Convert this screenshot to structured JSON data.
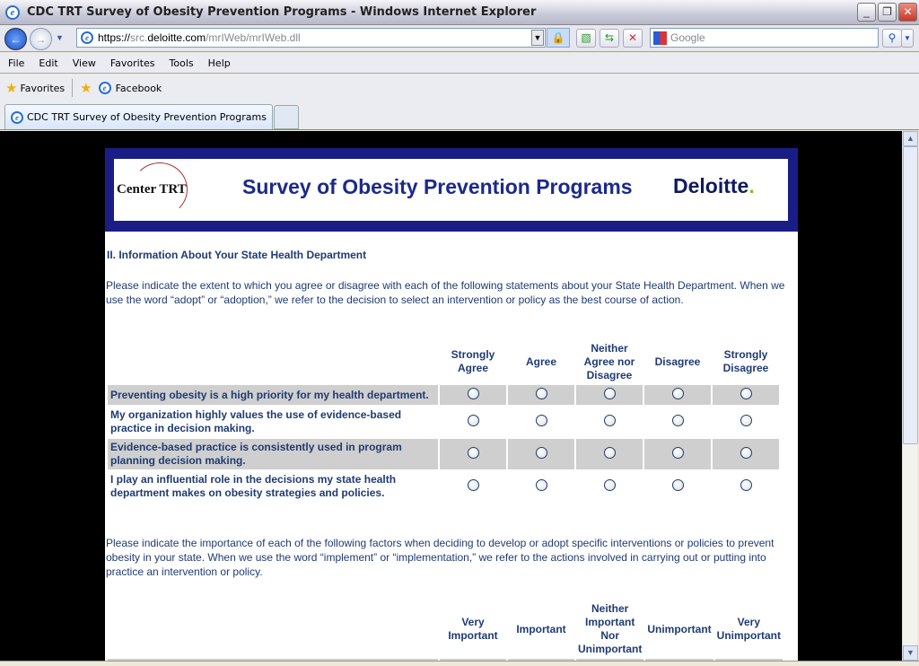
{
  "window": {
    "title": "CDC TRT Survey of Obesity Prevention Programs - Windows Internet Explorer"
  },
  "address": {
    "scheme": "https://",
    "host_pre": "src.",
    "host": "deloitte.com",
    "path": "/mrIWeb/mrIWeb.dll"
  },
  "search": {
    "placeholder": "Google"
  },
  "menu": [
    "File",
    "Edit",
    "View",
    "Favorites",
    "Tools",
    "Help"
  ],
  "favorites": {
    "label": "Favorites",
    "links": [
      "Facebook"
    ]
  },
  "tab": {
    "label": "CDC TRT Survey of Obesity Prevention Programs"
  },
  "banner": {
    "logo_left": "Center TRT",
    "title": "Survey of Obesity Prevention Programs",
    "logo_right": "Deloitte",
    "logo_right_dot": "."
  },
  "section": {
    "heading": "II. Information About Your State Health Department",
    "intro1": "Please indicate the extent to which you agree or disagree with each of the following statements about your State Health Department. When we use the word “adopt” or “adoption,” we refer to the decision to select an intervention or policy as the best course of action.",
    "intro2": "Please indicate the importance of each of the following factors when deciding to develop or adopt specific interventions or policies to prevent obesity in your state. When we use the word “implement” or “implementation,” we refer to the actions involved in carrying out or putting into practice an intervention or policy."
  },
  "grid1": {
    "columns": [
      "Strongly Agree",
      "Agree",
      "Neither Agree nor Disagree",
      "Disagree",
      "Strongly Disagree"
    ],
    "rows": [
      "Preventing obesity is a high priority for my health department.",
      "My organization highly values the use of evidence-based practice in decision making.",
      "Evidence-based practice is consistently used in program planning decision making.",
      "I play an influential role in the decisions my state health department makes on obesity strategies and policies."
    ]
  },
  "grid2": {
    "columns": [
      "Very Important",
      "Important",
      "Neither Important Nor Unimportant",
      "Unimportant",
      "Very Unimportant"
    ]
  }
}
